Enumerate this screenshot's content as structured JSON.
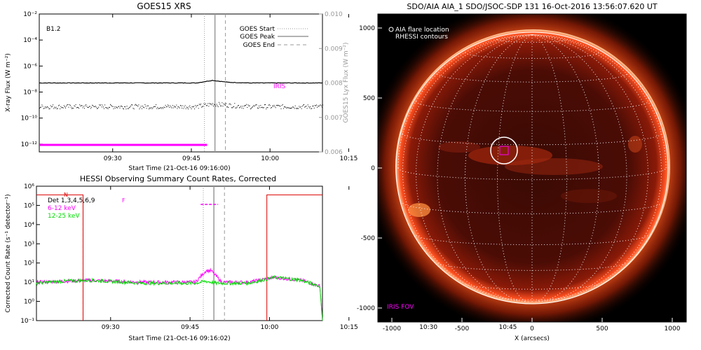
{
  "colors": {
    "iris": "#ff00ff",
    "green": "#00dd00",
    "red": "#dd0000",
    "gray": "#999999",
    "sun_limb": "#ffffff"
  },
  "chart_data": [
    {
      "type": "line",
      "title": "GOES15 XRS",
      "xlabel": "Start Time (21-Oct-16 09:16:00)",
      "ylabel": "X-ray Flux (W m⁻²)",
      "ylabel_right": "GOES15 Lyx Flux (W m⁻²)",
      "annotation_class": "B1.2",
      "x_ticks": [
        "09:30",
        "09:45",
        "10:00",
        "10:15",
        "10:30",
        "10:45"
      ],
      "x_range_min": [
        0,
        54
      ],
      "y_ticks_left": [
        "10⁻²",
        "10⁻⁴",
        "10⁻⁶",
        "10⁻⁸",
        "10⁻¹⁰",
        "10⁻¹²"
      ],
      "ylim_log10": [
        -12.6,
        -2
      ],
      "y_ticks_right": [
        "0.010",
        "0.009",
        "0.008",
        "0.007",
        "0.006"
      ],
      "ylim_right": [
        0.006,
        0.01
      ],
      "legend": [
        {
          "label": "GOES Start",
          "style": "dotted"
        },
        {
          "label": "GOES Peak",
          "style": "solid"
        },
        {
          "label": "GOES End",
          "style": "dashed"
        }
      ],
      "legend_position": "top-right",
      "event_lines_min": {
        "start": 31.5,
        "peak": 33.5,
        "end": 35.5
      },
      "series": [
        {
          "name": "",
          "style": "solid",
          "color": "#000000",
          "x": [
            0,
            10,
            20,
            30,
            33,
            36,
            40,
            50,
            54
          ],
          "log10_y": [
            -7.3,
            -7.3,
            -7.3,
            -7.3,
            -7.1,
            -7.25,
            -7.3,
            -7.3,
            -7.3
          ]
        },
        {
          "name": "",
          "style": "noisy-dotted",
          "color": "#000000",
          "x": [
            0,
            10,
            20,
            30,
            33,
            40,
            50,
            54
          ],
          "log10_y": [
            -9.1,
            -9.1,
            -9.1,
            -9.1,
            -8.9,
            -9.1,
            -9.1,
            -9.1
          ]
        }
      ],
      "iris_label": "IRIS",
      "iris_bar_min": [
        0,
        32
      ]
    },
    {
      "type": "line",
      "title": "HESSI Observing Summary Count Rates, Corrected",
      "xlabel": "Start Time (21-Oct-16 09:16:02)",
      "ylabel": "Corrected Count Rate (s⁻¹ detector⁻¹)",
      "x_ticks": [
        "09:30",
        "09:45",
        "10:00",
        "10:15",
        "10:30",
        "10:45"
      ],
      "x_range_min": [
        0,
        54
      ],
      "y_ticks": [
        "10⁶",
        "10⁵",
        "10⁴",
        "10³",
        "10²",
        "10¹",
        "10⁰",
        "10⁻¹"
      ],
      "ylim_log10": [
        -1,
        6
      ],
      "legend": [
        {
          "label": "Det 1,3,4,5,6,9",
          "color": "#000000"
        },
        {
          "label": "6-12 keV",
          "color": "#ff00ff"
        },
        {
          "label": "12-25 keV",
          "color": "#00dd00"
        }
      ],
      "legend_position": "top-left",
      "flags": {
        "n_label": "N",
        "f_label": "F"
      },
      "event_lines_min": {
        "start": 31.5,
        "peak": 33.5,
        "end": 35.5
      },
      "night_end_min": 8.8,
      "night_start_min": 43.5,
      "series": [
        {
          "name": "6-12 keV",
          "color": "#ff00ff",
          "x": [
            0,
            5,
            10,
            20,
            30,
            32,
            33,
            34,
            35,
            40,
            45,
            50,
            53.5,
            54
          ],
          "log10_y": [
            1.0,
            1.05,
            1.1,
            1.0,
            1.0,
            1.6,
            1.6,
            1.3,
            1.0,
            1.0,
            1.25,
            1.1,
            0.8,
            -1
          ]
        },
        {
          "name": "12-25 keV",
          "color": "#00dd00",
          "x": [
            0,
            5,
            10,
            20,
            30,
            32,
            34,
            36,
            40,
            45,
            50,
            53.5,
            54
          ],
          "log10_y": [
            0.95,
            1.05,
            1.1,
            0.95,
            0.95,
            1.05,
            0.95,
            0.95,
            0.95,
            1.25,
            1.1,
            0.8,
            -1
          ]
        }
      ]
    },
    {
      "type": "image",
      "title": "SDO/AIA AIA_1 SDO/JSOC-SDP 131 16-Oct-2016 13:56:07.620 UT",
      "xlabel": "X (arcsecs)",
      "x_ticks": [
        "-1000",
        "-500",
        "0",
        "500",
        "1000"
      ],
      "y_ticks": [
        "1000",
        "500",
        "0",
        "-500",
        "-1000"
      ],
      "xlim": [
        -1100,
        1100
      ],
      "ylim": [
        -1100,
        1100
      ],
      "legend": [
        "AIA flare location",
        "RHESSI contours"
      ],
      "legend_position": "top-left",
      "iris_fov_label": "IRIS FOV",
      "solar_radius_arcsec": 970,
      "flare_location": [
        -200,
        125
      ],
      "iris_fov_center": [
        -200,
        125
      ]
    }
  ]
}
